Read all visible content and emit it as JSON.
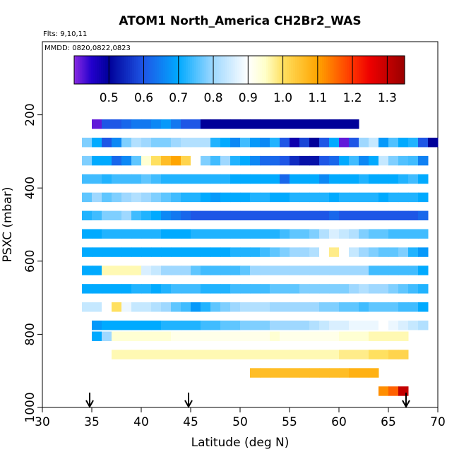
{
  "chart_data": {
    "type": "heatmap",
    "title": "ATOM1 North_America CH2Br2_WAS",
    "subtitle_flights": "Flts: 9,10,11",
    "subtitle_dates": "MMDD: 0820,0822,0823",
    "xlabel": "Latitude (deg N)",
    "ylabel": "PSXC (mbar)",
    "xlim": [
      30,
      70
    ],
    "ylim": [
      1000,
      0
    ],
    "x_ticks": [
      "30",
      "35",
      "40",
      "45",
      "50",
      "55",
      "60",
      "65",
      "70"
    ],
    "y_ticks": [
      "200",
      "400",
      "600",
      "800",
      "1000"
    ],
    "colorbar": {
      "range": [
        0.4,
        1.35
      ],
      "tick_labels": [
        "0.5",
        "0.6",
        "0.7",
        "0.8",
        "0.9",
        "1.0",
        "1.1",
        "1.2",
        "1.3"
      ],
      "stops": [
        [
          0.4,
          "#8a2be2"
        ],
        [
          0.45,
          "#2200cc"
        ],
        [
          0.5,
          "#000099"
        ],
        [
          0.6,
          "#1e56e6"
        ],
        [
          0.7,
          "#00aaff"
        ],
        [
          0.8,
          "#9fd8ff"
        ],
        [
          0.9,
          "#ffffff"
        ],
        [
          0.95,
          "#ffffc8"
        ],
        [
          1.0,
          "#ffe060"
        ],
        [
          1.1,
          "#ffa500"
        ],
        [
          1.2,
          "#ff3300"
        ],
        [
          1.25,
          "#ee0000"
        ],
        [
          1.35,
          "#990000"
        ]
      ]
    },
    "cell_width_deg": 1,
    "bands": [
      {
        "pressure": 225,
        "lat_start": 35,
        "values": [
          0.42,
          0.6,
          0.6,
          0.62,
          0.64,
          0.64,
          0.66,
          0.68,
          0.64,
          0.6,
          0.6,
          0.5,
          0.5,
          0.5,
          0.5,
          0.5,
          0.5,
          0.5,
          0.5,
          0.5,
          0.5,
          0.5,
          0.5,
          0.5,
          0.5,
          0.5,
          0.5
        ]
      },
      {
        "pressure": 275,
        "lat_start": 34,
        "values": [
          0.78,
          0.7,
          0.6,
          0.66,
          0.78,
          0.82,
          0.8,
          0.78,
          0.78,
          0.8,
          0.82,
          0.82,
          0.82,
          0.72,
          0.7,
          0.66,
          0.74,
          0.68,
          0.66,
          0.72,
          0.6,
          0.48,
          0.58,
          0.5,
          0.6,
          0.7,
          0.42,
          0.6,
          0.8,
          0.84,
          0.68,
          0.75,
          0.7,
          0.72,
          0.6,
          0.5
        ]
      },
      {
        "pressure": 325,
        "lat_start": 34,
        "values": [
          0.78,
          0.7,
          0.7,
          0.62,
          0.66,
          0.76,
          0.94,
          1.0,
          1.06,
          1.1,
          1.02,
          0.9,
          0.78,
          0.74,
          0.8,
          0.72,
          0.7,
          0.66,
          0.62,
          0.62,
          0.6,
          0.55,
          0.52,
          0.52,
          0.6,
          0.62,
          0.7,
          0.74,
          0.66,
          0.7,
          0.84,
          0.78,
          0.75,
          0.74,
          0.65
        ]
      },
      {
        "pressure": 375,
        "lat_start": 34,
        "values": [
          0.74,
          0.74,
          0.72,
          0.74,
          0.74,
          0.74,
          0.76,
          0.74,
          0.72,
          0.72,
          0.72,
          0.72,
          0.72,
          0.72,
          0.72,
          0.7,
          0.7,
          0.7,
          0.7,
          0.7,
          0.62,
          0.7,
          0.7,
          0.7,
          0.66,
          0.7,
          0.7,
          0.7,
          0.72,
          0.7,
          0.7,
          0.7,
          0.72,
          0.74,
          0.7
        ]
      },
      {
        "pressure": 425,
        "lat_start": 34,
        "values": [
          0.76,
          0.8,
          0.76,
          0.78,
          0.8,
          0.82,
          0.8,
          0.78,
          0.76,
          0.74,
          0.72,
          0.72,
          0.7,
          0.68,
          0.7,
          0.7,
          0.7,
          0.72,
          0.72,
          0.7,
          0.7,
          0.72,
          0.72,
          0.72,
          0.72,
          0.7,
          0.72,
          0.72,
          0.72,
          0.72,
          0.7,
          0.72,
          0.72,
          0.72,
          0.7
        ]
      },
      {
        "pressure": 475,
        "lat_start": 34,
        "values": [
          0.72,
          0.74,
          0.78,
          0.78,
          0.8,
          0.74,
          0.72,
          0.7,
          0.66,
          0.64,
          0.62,
          0.6,
          0.6,
          0.6,
          0.6,
          0.6,
          0.6,
          0.6,
          0.6,
          0.6,
          0.6,
          0.6,
          0.6,
          0.6,
          0.6,
          0.62,
          0.6,
          0.6,
          0.6,
          0.6,
          0.6,
          0.6,
          0.6,
          0.6,
          0.62
        ]
      },
      {
        "pressure": 525,
        "lat_start": 34,
        "values": [
          0.7,
          0.7,
          0.72,
          0.72,
          0.72,
          0.72,
          0.72,
          0.72,
          0.7,
          0.7,
          0.7,
          0.72,
          0.72,
          0.72,
          0.72,
          0.72,
          0.72,
          0.72,
          0.72,
          0.72,
          0.74,
          0.76,
          0.76,
          0.78,
          0.82,
          0.86,
          0.84,
          0.82,
          0.78,
          0.76,
          0.76,
          0.74,
          0.74,
          0.74,
          0.74
        ]
      },
      {
        "pressure": 575,
        "lat_start": 34,
        "values": [
          0.7,
          0.7,
          0.7,
          0.7,
          0.7,
          0.7,
          0.7,
          0.7,
          0.7,
          0.7,
          0.7,
          0.7,
          0.7,
          0.7,
          0.7,
          0.72,
          0.72,
          0.72,
          0.74,
          0.76,
          0.78,
          0.8,
          0.8,
          0.82,
          0.9,
          0.98,
          0.9,
          0.84,
          0.8,
          0.78,
          0.76,
          0.76,
          0.78,
          0.72,
          0.68
        ]
      },
      {
        "pressure": 625,
        "lat_start": 34,
        "values": [
          0.7,
          0.7,
          0.96,
          0.96,
          0.96,
          0.96,
          0.86,
          0.84,
          0.8,
          0.8,
          0.8,
          0.76,
          0.74,
          0.74,
          0.74,
          0.74,
          0.76,
          0.8,
          0.8,
          0.8,
          0.8,
          0.8,
          0.8,
          0.8,
          0.8,
          0.8,
          0.8,
          0.8,
          0.8,
          0.74,
          0.74,
          0.74,
          0.74,
          0.74,
          0.7
        ]
      },
      {
        "pressure": 675,
        "lat_start": 34,
        "values": [
          0.7,
          0.7,
          0.7,
          0.7,
          0.7,
          0.72,
          0.72,
          0.7,
          0.72,
          0.74,
          0.74,
          0.74,
          0.72,
          0.72,
          0.72,
          0.74,
          0.74,
          0.74,
          0.74,
          0.76,
          0.76,
          0.76,
          0.78,
          0.78,
          0.78,
          0.78,
          0.78,
          0.8,
          0.82,
          0.8,
          0.8,
          0.78,
          0.76,
          0.74,
          0.72
        ]
      },
      {
        "pressure": 725,
        "lat_start": 34,
        "values": [
          0.84,
          0.84,
          0.9,
          1.0,
          0.88,
          0.84,
          0.84,
          0.82,
          0.8,
          0.76,
          0.74,
          0.68,
          0.72,
          0.76,
          0.78,
          0.8,
          0.82,
          0.82,
          0.82,
          0.8,
          0.8,
          0.8,
          0.8,
          0.8,
          0.78,
          0.78,
          0.76,
          0.76,
          0.74,
          0.76,
          0.76,
          0.76,
          0.74,
          0.74,
          0.7
        ]
      },
      {
        "pressure": 775,
        "lat_start": 35,
        "values": [
          0.68,
          0.7,
          0.7,
          0.7,
          0.7,
          0.7,
          0.7,
          0.72,
          0.72,
          0.72,
          0.72,
          0.74,
          0.74,
          0.76,
          0.76,
          0.78,
          0.78,
          0.78,
          0.8,
          0.8,
          0.8,
          0.8,
          0.82,
          0.84,
          0.86,
          0.86,
          0.88,
          0.88,
          0.88,
          0.9,
          0.88,
          0.86,
          0.84,
          0.82
        ]
      },
      {
        "pressure": 805,
        "lat_start": 35,
        "values": [
          0.7,
          0.8,
          0.94,
          0.94,
          0.94,
          0.94,
          0.94,
          0.94,
          0.92,
          0.92,
          0.92,
          0.92,
          0.92,
          0.92,
          0.92,
          0.92,
          0.92,
          0.92,
          0.94,
          0.92,
          0.92,
          0.92,
          0.92,
          0.92,
          0.92,
          0.94,
          0.94,
          0.94,
          0.96,
          0.96,
          0.96,
          0.96
        ]
      },
      {
        "pressure": 855,
        "lat_start": 37,
        "values": [
          0.96,
          0.96,
          0.96,
          0.96,
          0.96,
          0.96,
          0.96,
          0.96,
          0.96,
          0.96,
          0.96,
          0.96,
          0.96,
          0.96,
          0.96,
          0.96,
          0.96,
          0.96,
          0.96,
          0.96,
          0.96,
          0.96,
          0.96,
          0.98,
          0.98,
          0.98,
          1.0,
          1.0,
          1.02,
          1.02
        ]
      },
      {
        "pressure": 905,
        "lat_start": 51,
        "values": [
          1.06,
          1.06,
          1.06,
          1.06,
          1.06,
          1.06,
          1.06,
          1.06,
          1.06,
          1.06,
          1.08,
          1.08,
          1.08
        ]
      },
      {
        "pressure": 955,
        "lat_start": 64,
        "values": [
          1.12,
          1.16,
          1.3
        ]
      }
    ],
    "arrow_latitudes": [
      35,
      45,
      67
    ]
  }
}
